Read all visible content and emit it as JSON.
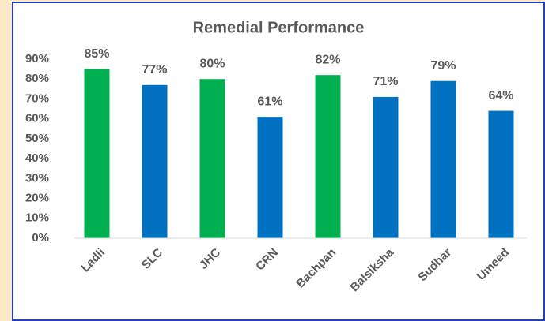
{
  "chart_data": {
    "type": "bar",
    "title": "Remedial Performance",
    "categories": [
      "Ladli",
      "SLC",
      "JHC",
      "CRN",
      "Bachpan",
      "Balsiksha",
      "Sudhar",
      "Umeed"
    ],
    "values": [
      85,
      77,
      80,
      61,
      82,
      71,
      79,
      64
    ],
    "value_labels": [
      "85%",
      "77%",
      "80%",
      "61%",
      "82%",
      "71%",
      "79%",
      "64%"
    ],
    "colors": [
      "#00b050",
      "#0070c0",
      "#00b050",
      "#0070c0",
      "#00b050",
      "#0070c0",
      "#0070c0",
      "#0070c0"
    ],
    "ylim": [
      0,
      90
    ],
    "yticks": [
      {
        "value": 0,
        "label": "0%"
      },
      {
        "value": 10,
        "label": "10%"
      },
      {
        "value": 20,
        "label": "20%"
      },
      {
        "value": 30,
        "label": "30%"
      },
      {
        "value": 40,
        "label": "40%"
      },
      {
        "value": 50,
        "label": "50%"
      },
      {
        "value": 60,
        "label": "60%"
      },
      {
        "value": 70,
        "label": "70%"
      },
      {
        "value": 80,
        "label": "80%"
      },
      {
        "value": 90,
        "label": "90%"
      }
    ],
    "grid": false
  }
}
